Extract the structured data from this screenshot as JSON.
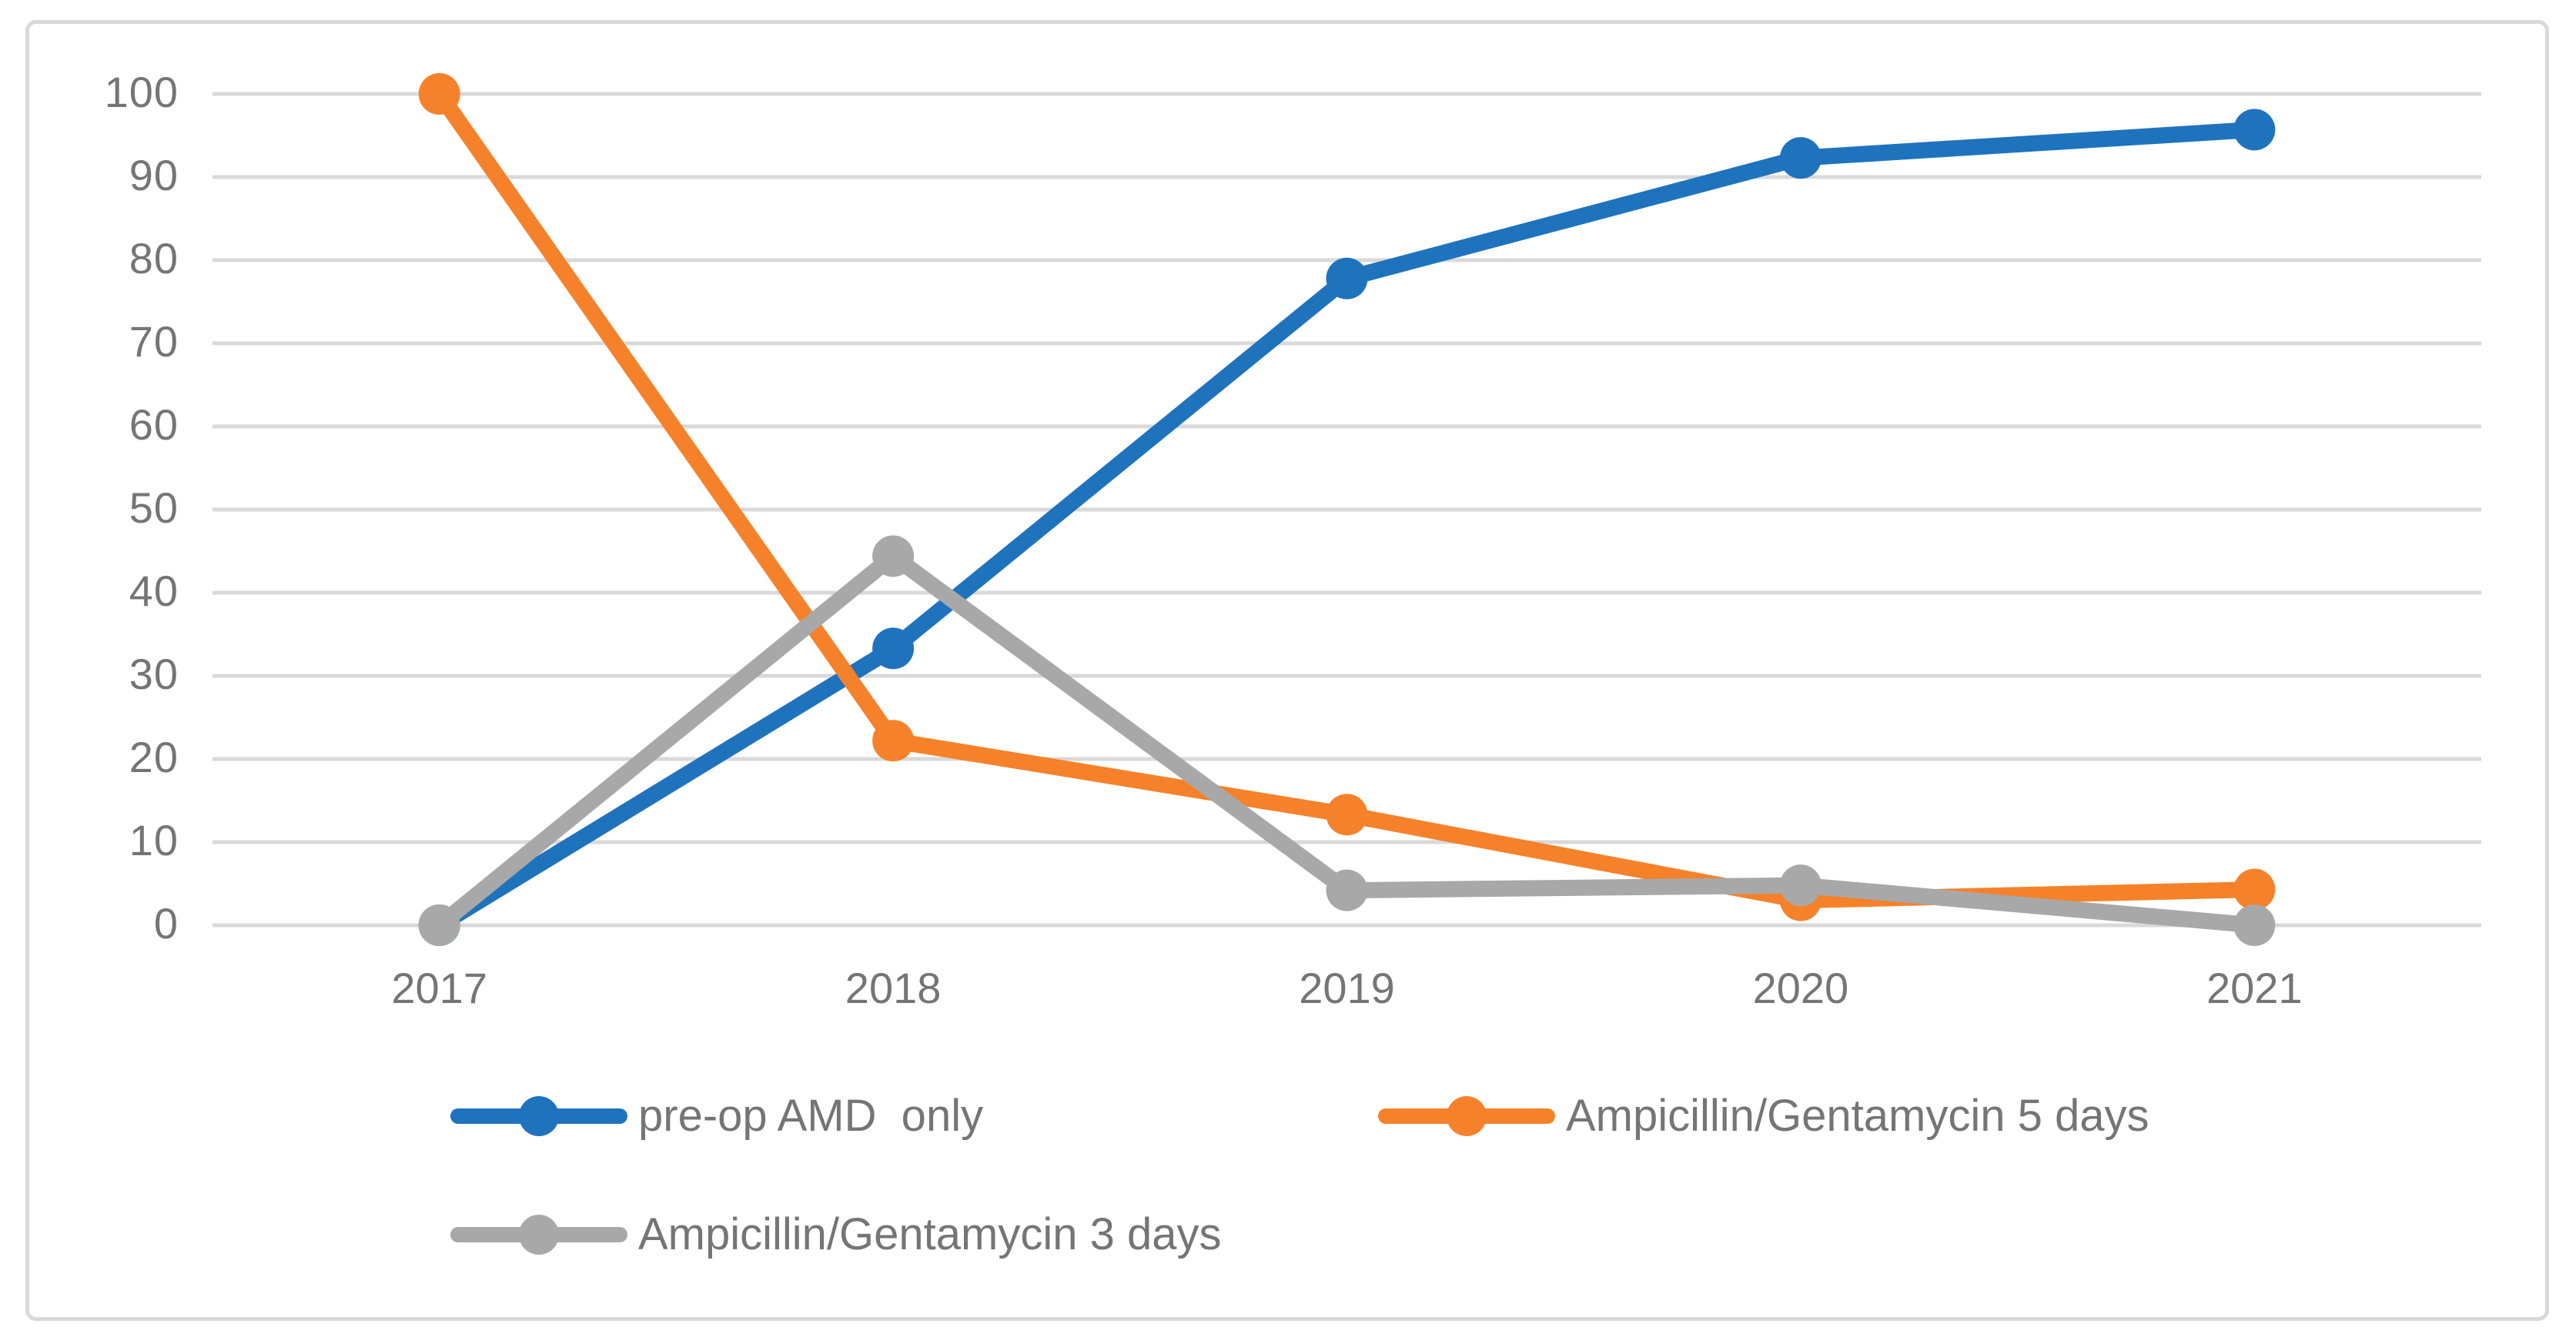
{
  "chart_data": {
    "type": "line",
    "title": "",
    "xlabel": "",
    "ylabel": "",
    "categories": [
      "2017",
      "2018",
      "2019",
      "2020",
      "2021"
    ],
    "series": [
      {
        "name": "pre-op AMD  only",
        "color": "#1F73BD",
        "values": [
          0,
          33.3,
          77.8,
          92.3,
          95.7
        ]
      },
      {
        "name": "Ampicillin/Gentamycin 5 days",
        "color": "#F5822A",
        "values": [
          100,
          22.2,
          13.3,
          3,
          4.3
        ]
      },
      {
        "name": "Ampicillin/Gentamycin 3 days",
        "color": "#A8A8A8",
        "values": [
          0,
          44.4,
          4.2,
          4.8,
          0
        ]
      }
    ],
    "ylim": [
      0,
      100
    ],
    "y_tick_step": 10,
    "y_tick_labels": [
      "0",
      "10",
      "20",
      "30",
      "40",
      "50",
      "60",
      "70",
      "80",
      "90",
      "100"
    ],
    "grid": "horizontal",
    "grid_color": "#D9D9D9",
    "text_color": "#757575",
    "legend_position": "bottom"
  }
}
